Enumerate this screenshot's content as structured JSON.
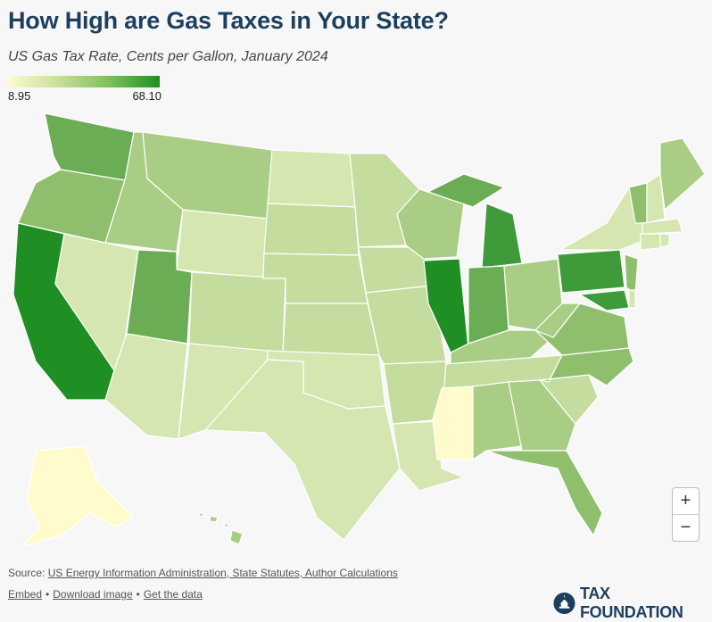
{
  "header": {
    "title": "How High are Gas Taxes in Your State?",
    "subtitle": "US Gas Tax Rate, Cents per Gallon, January 2024"
  },
  "legend": {
    "min_label": "8.95",
    "max_label": "68.10",
    "min_color": "#fffbcc",
    "max_color": "#1f8f23"
  },
  "zoom": {
    "in_label": "+",
    "out_label": "−"
  },
  "footer": {
    "source_prefix": "Source:",
    "source_link": "US Energy Information Administration, State Statutes, Author Calculations",
    "embed_label": "Embed",
    "download_label": "Download image",
    "data_label": "Get the data",
    "separator": "•",
    "logo_text": "TAX FOUNDATION"
  },
  "colors": {
    "darkest": "#1f8f23",
    "dark": "#3f9a3a",
    "medium_dark": "#6aad55",
    "medium": "#8fbf6c",
    "medium_light": "#a9cd84",
    "light": "#c4dc9e",
    "lighter": "#d5e6b0",
    "lightest": "#fffbcc"
  }
}
